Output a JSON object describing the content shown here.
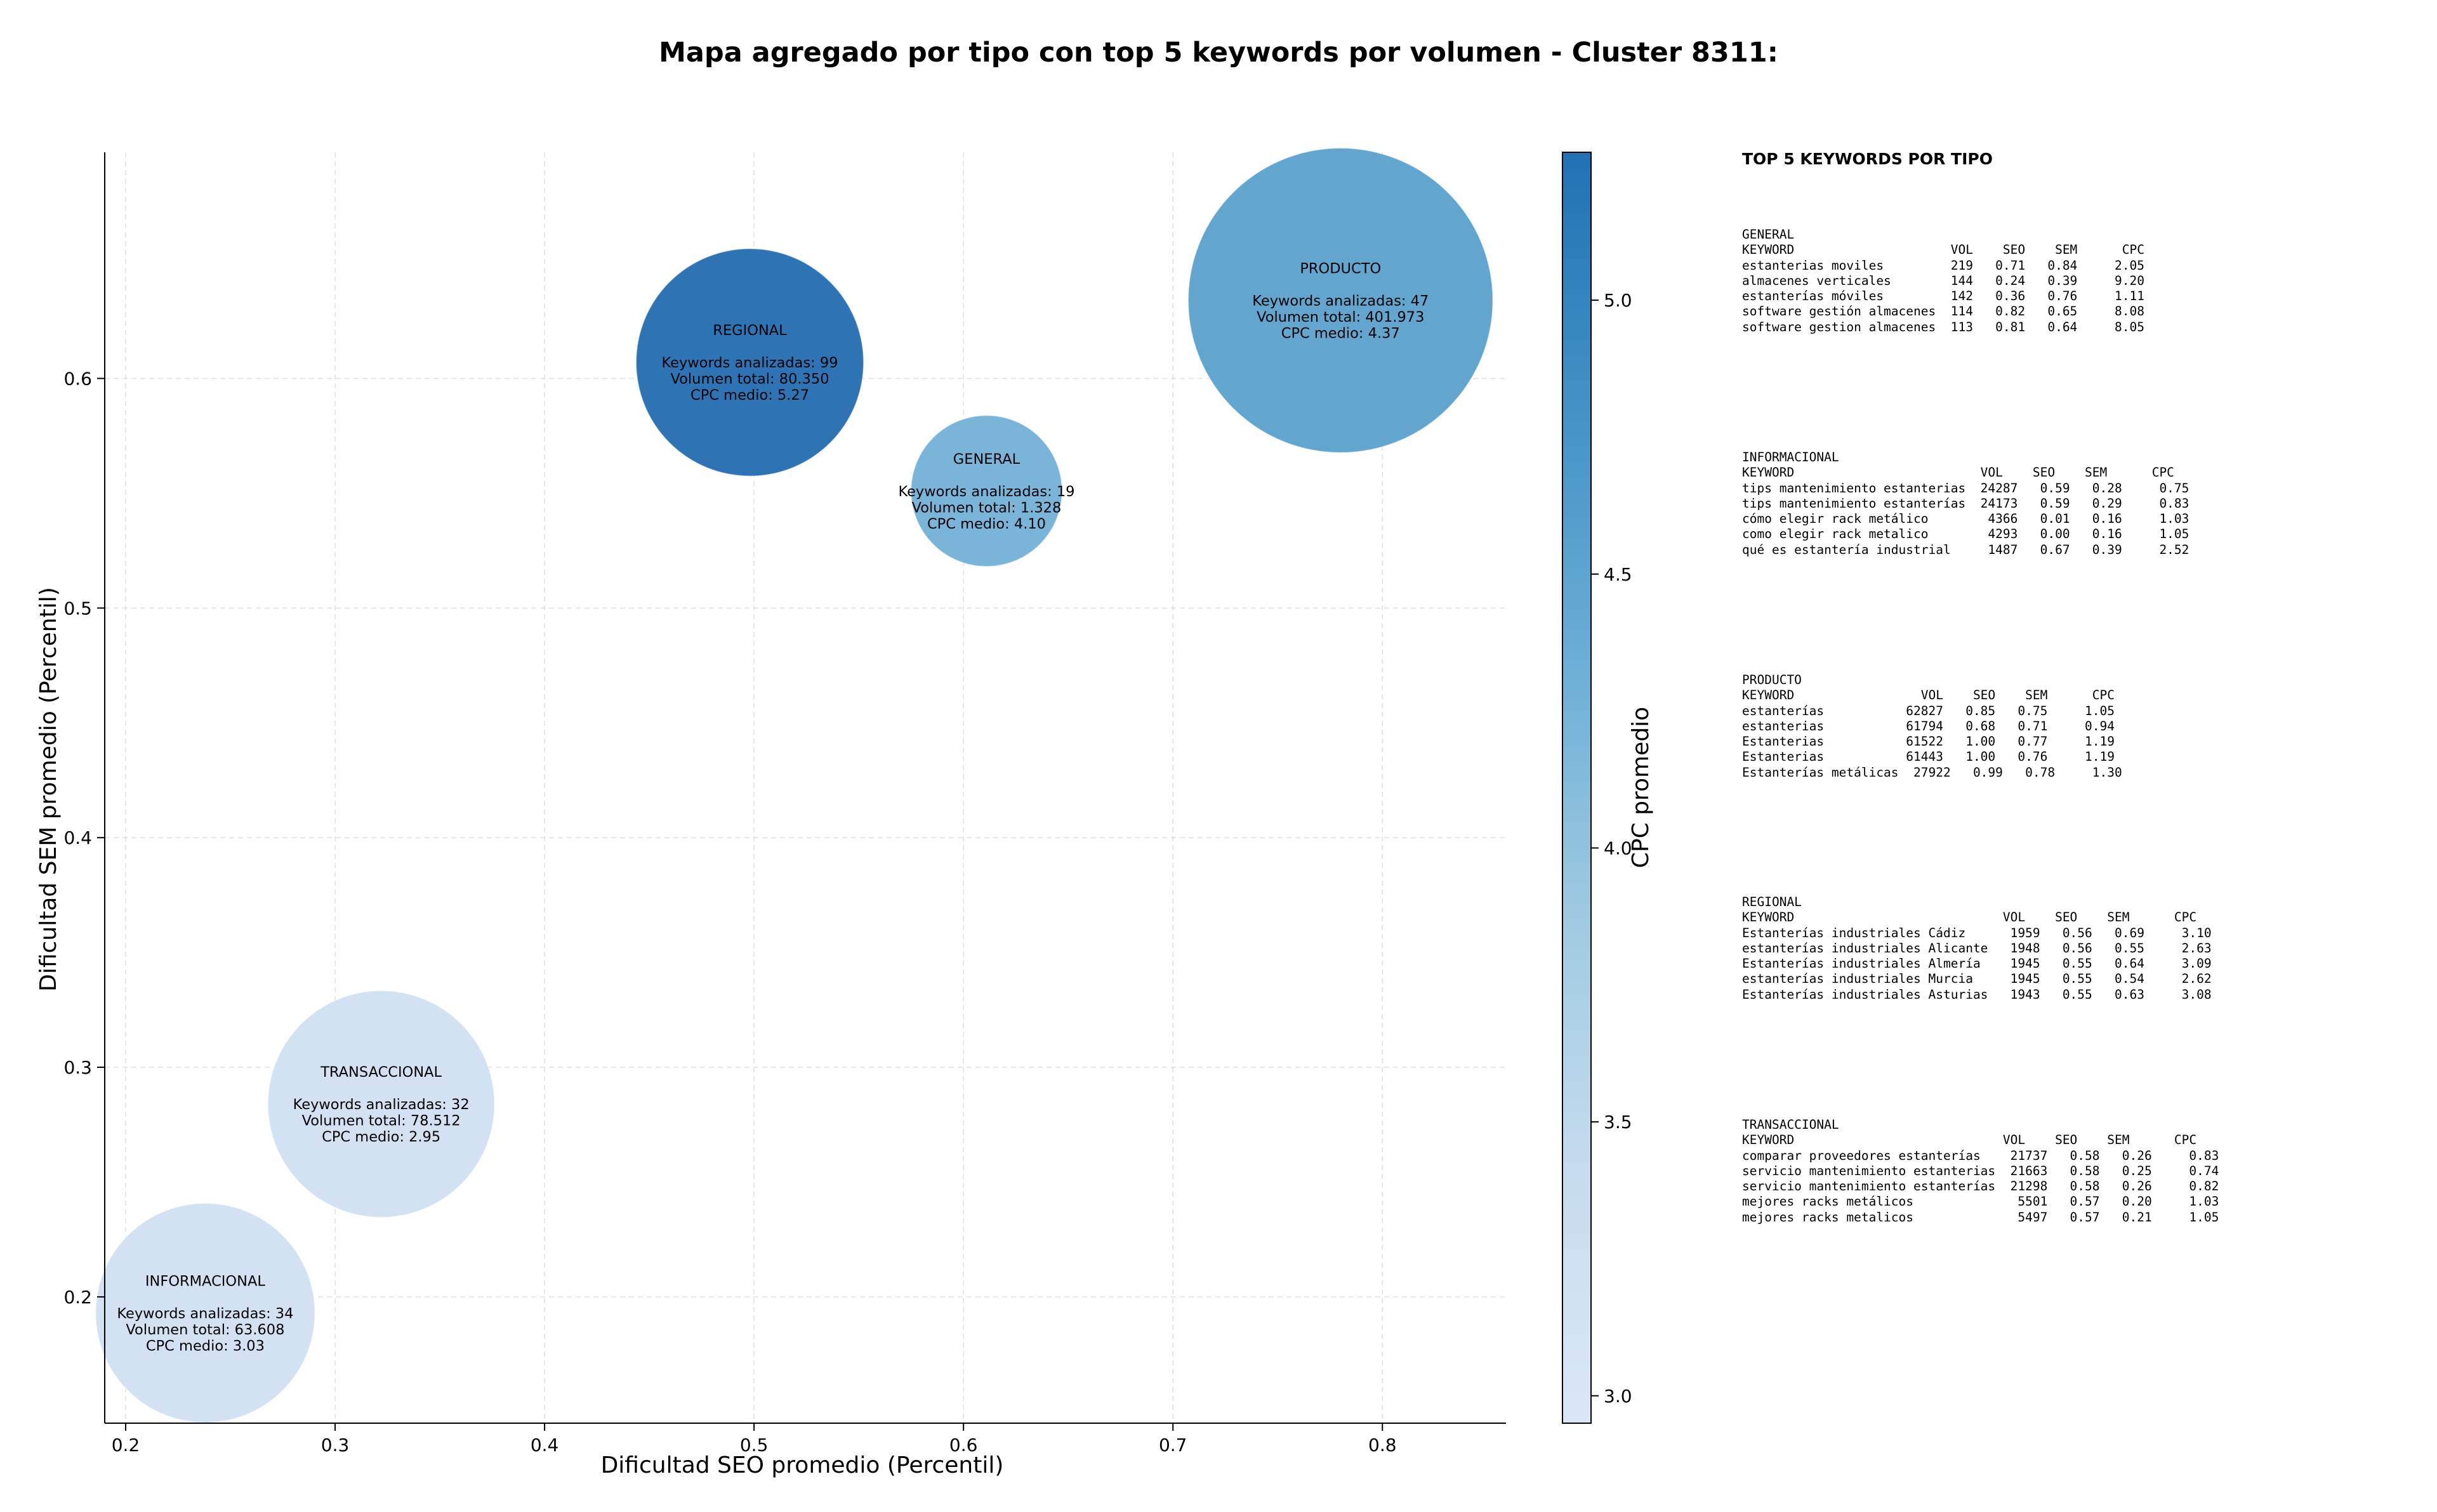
{
  "chart_data": {
    "type": "scatter",
    "title": "Mapa agregado por tipo con top 5 keywords por volumen - Cluster 8311:",
    "xlabel": "Dificultad SEO promedio (Percentil)",
    "ylabel": "Dificultad SEM promedio (Percentil)",
    "xlim": [
      0.19,
      0.859
    ],
    "ylim": [
      0.145,
      0.6985
    ],
    "xticks": [
      "0.2",
      "0.3",
      "0.4",
      "0.5",
      "0.6",
      "0.7",
      "0.8"
    ],
    "yticks": [
      "0.2",
      "0.3",
      "0.4",
      "0.5",
      "0.6"
    ],
    "grid": true,
    "colorbar": {
      "label": "CPC promedio",
      "min": 2.95,
      "max": 5.27,
      "ticks": [
        "3.0",
        "3.5",
        "4.0",
        "4.5",
        "5.0"
      ],
      "colormap": [
        "#dbe8f5",
        "#c6dbef",
        "#9ecae1",
        "#6baed6",
        "#4292c6",
        "#2171b5"
      ]
    },
    "bubbles": [
      {
        "type": "REGIONAL",
        "x": 0.498,
        "y": 0.607,
        "keywords": 99,
        "volume": 80350,
        "cpc": 5.27,
        "color": "#2e74b5",
        "lines": [
          "REGIONAL",
          "",
          "Keywords analizadas: 99",
          "Volumen total: 80.350",
          "CPC medio: 5.27"
        ]
      },
      {
        "type": "GENERAL",
        "x": 0.611,
        "y": 0.551,
        "keywords": 19,
        "volume": 1328,
        "cpc": 4.1,
        "color": "#7ab5d9",
        "lines": [
          "GENERAL",
          "",
          "Keywords analizadas: 19",
          "Volumen total: 1.328",
          "CPC medio: 4.10"
        ]
      },
      {
        "type": "PRODUCTO",
        "x": 0.78,
        "y": 0.634,
        "keywords": 47,
        "volume": 401973,
        "cpc": 4.37,
        "color": "#62a6d0",
        "lines": [
          "PRODUCTO",
          "",
          "Keywords analizadas: 47",
          "Volumen total: 401.973",
          "CPC medio: 4.37"
        ]
      },
      {
        "type": "TRANSACCIONAL",
        "x": 0.322,
        "y": 0.284,
        "keywords": 32,
        "volume": 78512,
        "cpc": 2.95,
        "color": "#d2e2f2",
        "lines": [
          "TRANSACCIONAL",
          "",
          "Keywords analizadas: 32",
          "Volumen total: 78.512",
          "CPC medio: 2.95"
        ]
      },
      {
        "type": "INFORMACIONAL",
        "x": 0.238,
        "y": 0.193,
        "keywords": 34,
        "volume": 63608,
        "cpc": 3.03,
        "color": "#d2e2f2",
        "lines": [
          "INFORMACIONAL",
          "",
          "Keywords analizadas: 34",
          "Volumen total: 63.608",
          "CPC medio: 3.03"
        ]
      }
    ]
  },
  "panel": {
    "heading": "TOP 5 KEYWORDS POR TIPO",
    "tables": [
      {
        "text": "GENERAL\nKEYWORD                     VOL    SEO    SEM      CPC\nestanterias moviles         219   0.71   0.84     2.05\nalmacenes verticales        144   0.24   0.39     9.20\nestanterías móviles         142   0.36   0.76     1.11\nsoftware gestión almacenes  114   0.82   0.65     8.08\nsoftware gestion almacenes  113   0.81   0.64     8.05"
      },
      {
        "text": "INFORMACIONAL\nKEYWORD                         VOL    SEO    SEM      CPC\ntips mantenimiento estanterias  24287   0.59   0.28     0.75\ntips mantenimiento estanterías  24173   0.59   0.29     0.83\ncómo elegir rack metálico        4366   0.01   0.16     1.03\ncomo elegir rack metalico        4293   0.00   0.16     1.05\nqué es estantería industrial     1487   0.67   0.39     2.52"
      },
      {
        "text": "PRODUCTO\nKEYWORD                 VOL    SEO    SEM      CPC\nestanterías           62827   0.85   0.75     1.05\nestanterias           61794   0.68   0.71     0.94\nEstanterias           61522   1.00   0.77     1.19\nEstanterias           61443   1.00   0.76     1.19\nEstanterías metálicas  27922   0.99   0.78     1.30"
      },
      {
        "text": "REGIONAL\nKEYWORD                            VOL    SEO    SEM      CPC\nEstanterías industriales Cádiz      1959   0.56   0.69     3.10\nestanterías industriales Alicante   1948   0.56   0.55     2.63\nEstanterías industriales Almería    1945   0.55   0.64     3.09\nestanterías industriales Murcia     1945   0.55   0.54     2.62\nEstanterías industriales Asturias   1943   0.55   0.63     3.08"
      },
      {
        "text": "TRANSACCIONAL\nKEYWORD                            VOL    SEO    SEM      CPC\ncomparar proveedores estanterías    21737   0.58   0.26     0.83\nservicio mantenimiento estanterias  21663   0.58   0.25     0.74\nservicio mantenimiento estanterías  21298   0.58   0.26     0.82\nmejores racks metálicos              5501   0.57   0.20     1.03\nmejores racks metalicos              5497   0.57   0.21     1.05"
      }
    ]
  }
}
